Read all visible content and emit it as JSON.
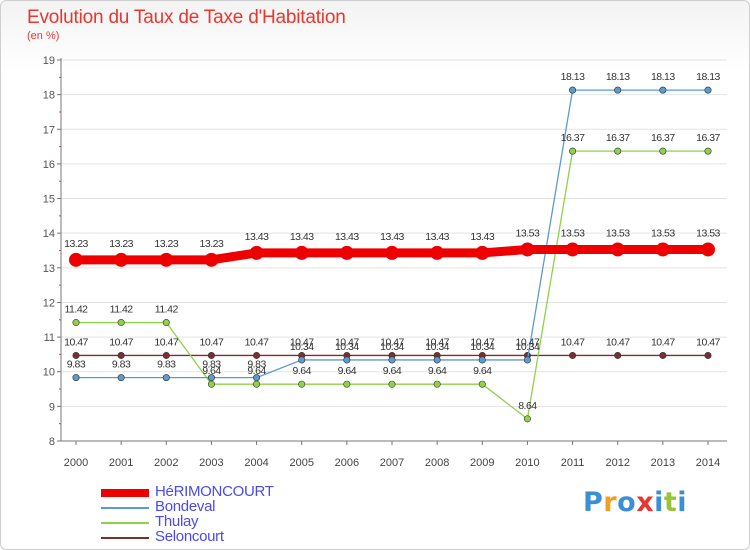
{
  "title": "Evolution du Taux de Taxe d'Habitation",
  "ylabel": "(en %)",
  "logo": {
    "letters": [
      "P",
      "r",
      "o",
      "x",
      "i",
      "t",
      "i"
    ],
    "colors": [
      "#3b8fd4",
      "#f0a020",
      "#3b8fd4",
      "#e8372e",
      "#3b8fd4",
      "#9ac33c",
      "#3b8fd4"
    ]
  },
  "colors": {
    "title": "#e8372e",
    "grid": "#e3e3e3",
    "axis": "#777777",
    "legend_text": "#4a4aee"
  },
  "chart_data": {
    "type": "line",
    "title": "Evolution du Taux de Taxe d'Habitation",
    "xlabel": "",
    "ylabel": "(en %)",
    "ylim": [
      8,
      19
    ],
    "yticks": [
      8,
      9,
      10,
      11,
      12,
      13,
      14,
      15,
      16,
      17,
      18,
      19
    ],
    "categories": [
      "2000",
      "2001",
      "2002",
      "2003",
      "2004",
      "2005",
      "2006",
      "2007",
      "2008",
      "2009",
      "2010",
      "2011",
      "2012",
      "2013",
      "2014"
    ],
    "grid": true,
    "legend_position": "bottom-left",
    "series": [
      {
        "name": "HéRIMONCOURT",
        "color": "#ee0000",
        "values": [
          13.23,
          13.23,
          13.23,
          13.23,
          13.43,
          13.43,
          13.43,
          13.43,
          13.43,
          13.43,
          13.53,
          13.53,
          13.53,
          13.53,
          13.53
        ]
      },
      {
        "name": "Bondeval",
        "color": "#5b9bd0",
        "values": [
          9.83,
          9.83,
          9.83,
          9.83,
          9.83,
          10.34,
          10.34,
          10.34,
          10.34,
          10.34,
          10.34,
          18.13,
          18.13,
          18.13,
          18.13
        ]
      },
      {
        "name": "Thulay",
        "color": "#8fd24a",
        "values": [
          11.42,
          11.42,
          11.42,
          9.64,
          9.64,
          9.64,
          9.64,
          9.64,
          9.64,
          9.64,
          8.64,
          16.37,
          16.37,
          16.37,
          16.37
        ]
      },
      {
        "name": "Seloncourt",
        "color": "#7a2f2f",
        "values": [
          10.47,
          10.47,
          10.47,
          10.47,
          10.47,
          10.47,
          10.47,
          10.47,
          10.47,
          10.47,
          10.47,
          10.47,
          10.47,
          10.47,
          10.47
        ]
      }
    ]
  }
}
